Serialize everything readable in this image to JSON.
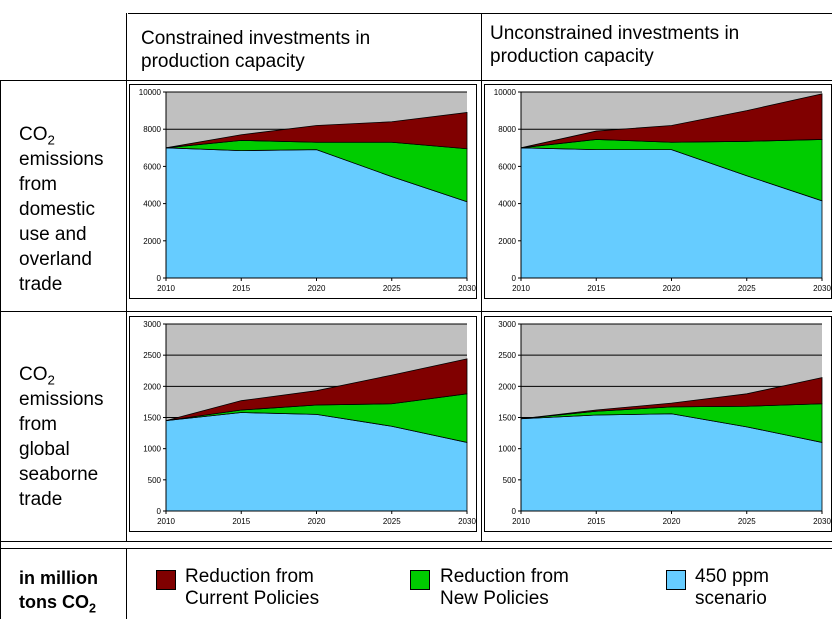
{
  "columns": {
    "constrained": {
      "line1": "Constrained investments in",
      "line2": "production capacity"
    },
    "unconstrained": {
      "line1": "Unconstrained investments in",
      "line2": "production capacity"
    }
  },
  "rows": {
    "domestic": {
      "co": "CO",
      "sub": "2",
      "lines": [
        "emissions",
        "from",
        "domestic",
        "use and",
        "overland",
        "trade"
      ]
    },
    "seaborne": {
      "co": "CO",
      "sub": "2",
      "lines": [
        "emissions",
        "from",
        "global",
        "seaborne",
        "trade"
      ]
    }
  },
  "legend": {
    "units_line1": "in million",
    "units_line2": "tons CO",
    "units_sub": "2",
    "items": [
      {
        "line1": "Reduction from",
        "line2": "Current Policies",
        "color": "#800000"
      },
      {
        "line1": "Reduction from",
        "line2": "New Policies",
        "color": "#00CC00"
      },
      {
        "line1": "450 ppm",
        "line2": "scenario",
        "color": "#66CCFF"
      }
    ]
  },
  "colors": {
    "current": "#800000",
    "new": "#00CC00",
    "ppm450": "#66CCFF",
    "plot_bg": "#C0C0C0"
  },
  "chart_data": [
    {
      "type": "area",
      "row": "domestic",
      "column": "constrained",
      "x": [
        2010,
        2015,
        2020,
        2025,
        2030
      ],
      "ylim": [
        0,
        10000
      ],
      "yticks": [
        0,
        2000,
        4000,
        6000,
        8000,
        10000
      ],
      "series": [
        {
          "name": "450 ppm scenario",
          "values": [
            7000,
            6850,
            6900,
            5450,
            4100
          ]
        },
        {
          "name": "Reduction from New Policies",
          "values": [
            0,
            550,
            400,
            1850,
            2850
          ]
        },
        {
          "name": "Reduction from Current Policies",
          "values": [
            0,
            300,
            900,
            1100,
            1950
          ]
        }
      ]
    },
    {
      "type": "area",
      "row": "domestic",
      "column": "unconstrained",
      "x": [
        2010,
        2015,
        2020,
        2025,
        2030
      ],
      "ylim": [
        0,
        10000
      ],
      "yticks": [
        0,
        2000,
        4000,
        6000,
        8000,
        10000
      ],
      "series": [
        {
          "name": "450 ppm scenario",
          "values": [
            7000,
            6900,
            6900,
            5500,
            4150
          ]
        },
        {
          "name": "Reduction from New Policies",
          "values": [
            0,
            550,
            400,
            1850,
            3300
          ]
        },
        {
          "name": "Reduction from Current Policies",
          "values": [
            0,
            450,
            900,
            1650,
            2450
          ]
        }
      ]
    },
    {
      "type": "area",
      "row": "seaborne",
      "column": "constrained",
      "x": [
        2010,
        2015,
        2020,
        2025,
        2030
      ],
      "ylim": [
        0,
        3000
      ],
      "yticks": [
        0,
        500,
        1000,
        1500,
        2000,
        2500,
        3000
      ],
      "series": [
        {
          "name": "450 ppm scenario",
          "values": [
            1450,
            1580,
            1550,
            1360,
            1100
          ]
        },
        {
          "name": "Reduction from New Policies",
          "values": [
            0,
            40,
            150,
            360,
            780
          ]
        },
        {
          "name": "Reduction from Current Policies",
          "values": [
            0,
            150,
            230,
            460,
            560
          ]
        }
      ]
    },
    {
      "type": "area",
      "row": "seaborne",
      "column": "unconstrained",
      "x": [
        2010,
        2015,
        2020,
        2025,
        2030
      ],
      "ylim": [
        0,
        3000
      ],
      "yticks": [
        0,
        500,
        1000,
        1500,
        2000,
        2500,
        3000
      ],
      "series": [
        {
          "name": "450 ppm scenario",
          "values": [
            1480,
            1540,
            1560,
            1350,
            1100
          ]
        },
        {
          "name": "Reduction from New Policies",
          "values": [
            0,
            60,
            110,
            330,
            620
          ]
        },
        {
          "name": "Reduction from Current Policies",
          "values": [
            0,
            20,
            60,
            200,
            420
          ]
        }
      ]
    }
  ]
}
